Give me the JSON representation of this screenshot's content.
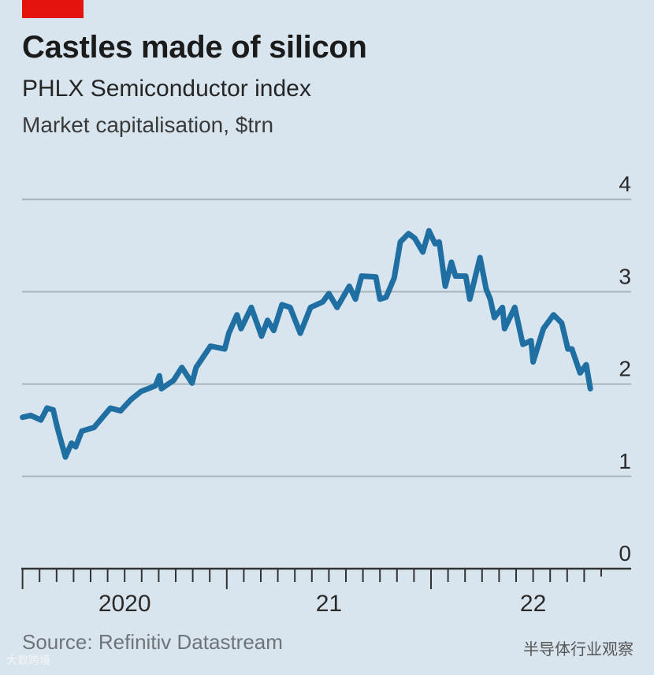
{
  "chart_data": {
    "type": "line",
    "title": "Castles made of silicon",
    "subtitle": "PHLX Semiconductor index",
    "ylabel": "Market capitalisation, $trn",
    "source": "Source: Refinitiv Datastream",
    "ylim": [
      0,
      4
    ],
    "yticks": [
      "0",
      "1",
      "2",
      "3",
      "4"
    ],
    "xlim": [
      2020,
      2022.8
    ],
    "xtick_labels": [
      {
        "label": "2020",
        "x": 2020.5
      },
      {
        "label": "21",
        "x": 2021.5
      },
      {
        "label": "22",
        "x": 2022.5
      }
    ],
    "grid": true,
    "line_color": "#1f6fa3",
    "series": [
      {
        "name": "PHLX Semiconductor index market cap",
        "x": [
          2020.0,
          2020.04,
          2020.09,
          2020.12,
          2020.15,
          2020.17,
          2020.21,
          2020.24,
          2020.26,
          2020.29,
          2020.35,
          2020.43,
          2020.48,
          2020.53,
          2020.58,
          2020.65,
          2020.67,
          2020.68,
          2020.74,
          2020.78,
          2020.83,
          2020.85,
          2020.92,
          2020.99,
          2021.01,
          2021.05,
          2021.07,
          2021.12,
          2021.17,
          2021.2,
          2021.23,
          2021.27,
          2021.31,
          2021.36,
          2021.41,
          2021.47,
          2021.5,
          2021.54,
          2021.6,
          2021.63,
          2021.66,
          2021.73,
          2021.75,
          2021.78,
          2021.82,
          2021.85,
          2021.89,
          2021.92,
          2021.96,
          2021.99,
          2022.02,
          2022.04,
          2022.07,
          2022.1,
          2022.12,
          2022.17,
          2022.19,
          2022.24,
          2022.27,
          2022.29,
          2022.31,
          2022.35,
          2022.36,
          2022.41,
          2022.45,
          2022.49,
          2022.5,
          2022.55,
          2022.6,
          2022.64,
          2022.67,
          2022.69,
          2022.73,
          2022.76,
          2022.78
        ],
        "y": [
          1.64,
          1.66,
          1.61,
          1.74,
          1.72,
          1.53,
          1.21,
          1.36,
          1.32,
          1.49,
          1.53,
          1.74,
          1.71,
          1.83,
          1.92,
          1.98,
          2.09,
          1.95,
          2.04,
          2.18,
          2.01,
          2.18,
          2.41,
          2.38,
          2.55,
          2.75,
          2.6,
          2.83,
          2.52,
          2.69,
          2.58,
          2.86,
          2.83,
          2.55,
          2.83,
          2.89,
          2.98,
          2.83,
          3.06,
          2.92,
          3.17,
          3.16,
          2.92,
          2.94,
          3.15,
          3.54,
          3.63,
          3.58,
          3.43,
          3.66,
          3.52,
          3.54,
          3.06,
          3.32,
          3.17,
          3.17,
          2.92,
          3.37,
          3.03,
          2.92,
          2.72,
          2.83,
          2.6,
          2.83,
          2.43,
          2.47,
          2.24,
          2.6,
          2.75,
          2.66,
          2.38,
          2.38,
          2.12,
          2.21,
          1.95
        ]
      }
    ]
  },
  "watermarks": {
    "wechat": "半导体行业观察",
    "corner": "大数跨境"
  }
}
